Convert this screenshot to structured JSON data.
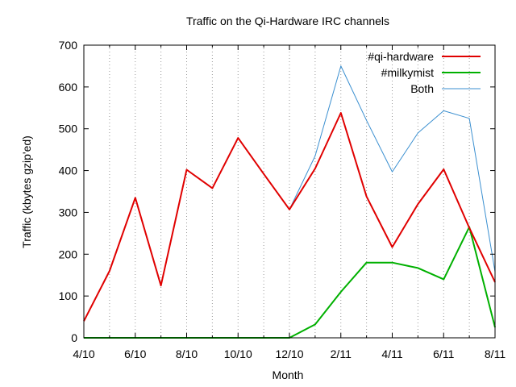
{
  "chart_data": {
    "type": "line",
    "title": "Traffic on the Qi-Hardware IRC channels",
    "xlabel": "Month",
    "ylabel": "Traffic (kbytes gzip'ed)",
    "ylim": [
      0,
      700
    ],
    "yticks": [
      0,
      100,
      200,
      300,
      400,
      500,
      600,
      700
    ],
    "x": [
      "4/10",
      "5/10",
      "6/10",
      "7/10",
      "8/10",
      "9/10",
      "10/10",
      "11/10",
      "12/10",
      "1/11",
      "2/11",
      "3/11",
      "4/11",
      "5/11",
      "6/11",
      "7/11",
      "8/11"
    ],
    "xtick_labels": [
      "4/10",
      "",
      "6/10",
      "",
      "8/10",
      "",
      "10/10",
      "",
      "12/10",
      "",
      "2/11",
      "",
      "4/11",
      "",
      "6/11",
      "",
      "8/11"
    ],
    "grid": "vertical dotted lines at each month",
    "legend_position": "top-right",
    "series": [
      {
        "name": "#qi-hardware",
        "color": "#e00000",
        "width": 2,
        "values": [
          40,
          160,
          335,
          125,
          402,
          358,
          478,
          392,
          307,
          405,
          538,
          338,
          217,
          320,
          403,
          263,
          133
        ]
      },
      {
        "name": "#milkymist",
        "color": "#00b000",
        "width": 2,
        "values": [
          0,
          0,
          0,
          0,
          0,
          0,
          0,
          0,
          0,
          32,
          110,
          180,
          180,
          167,
          140,
          265,
          25
        ]
      },
      {
        "name": "Both",
        "color": "#3a8fd0",
        "width": 1,
        "values": [
          40,
          160,
          335,
          125,
          402,
          358,
          478,
          392,
          307,
          435,
          650,
          520,
          397,
          490,
          543,
          525,
          158
        ]
      }
    ]
  }
}
